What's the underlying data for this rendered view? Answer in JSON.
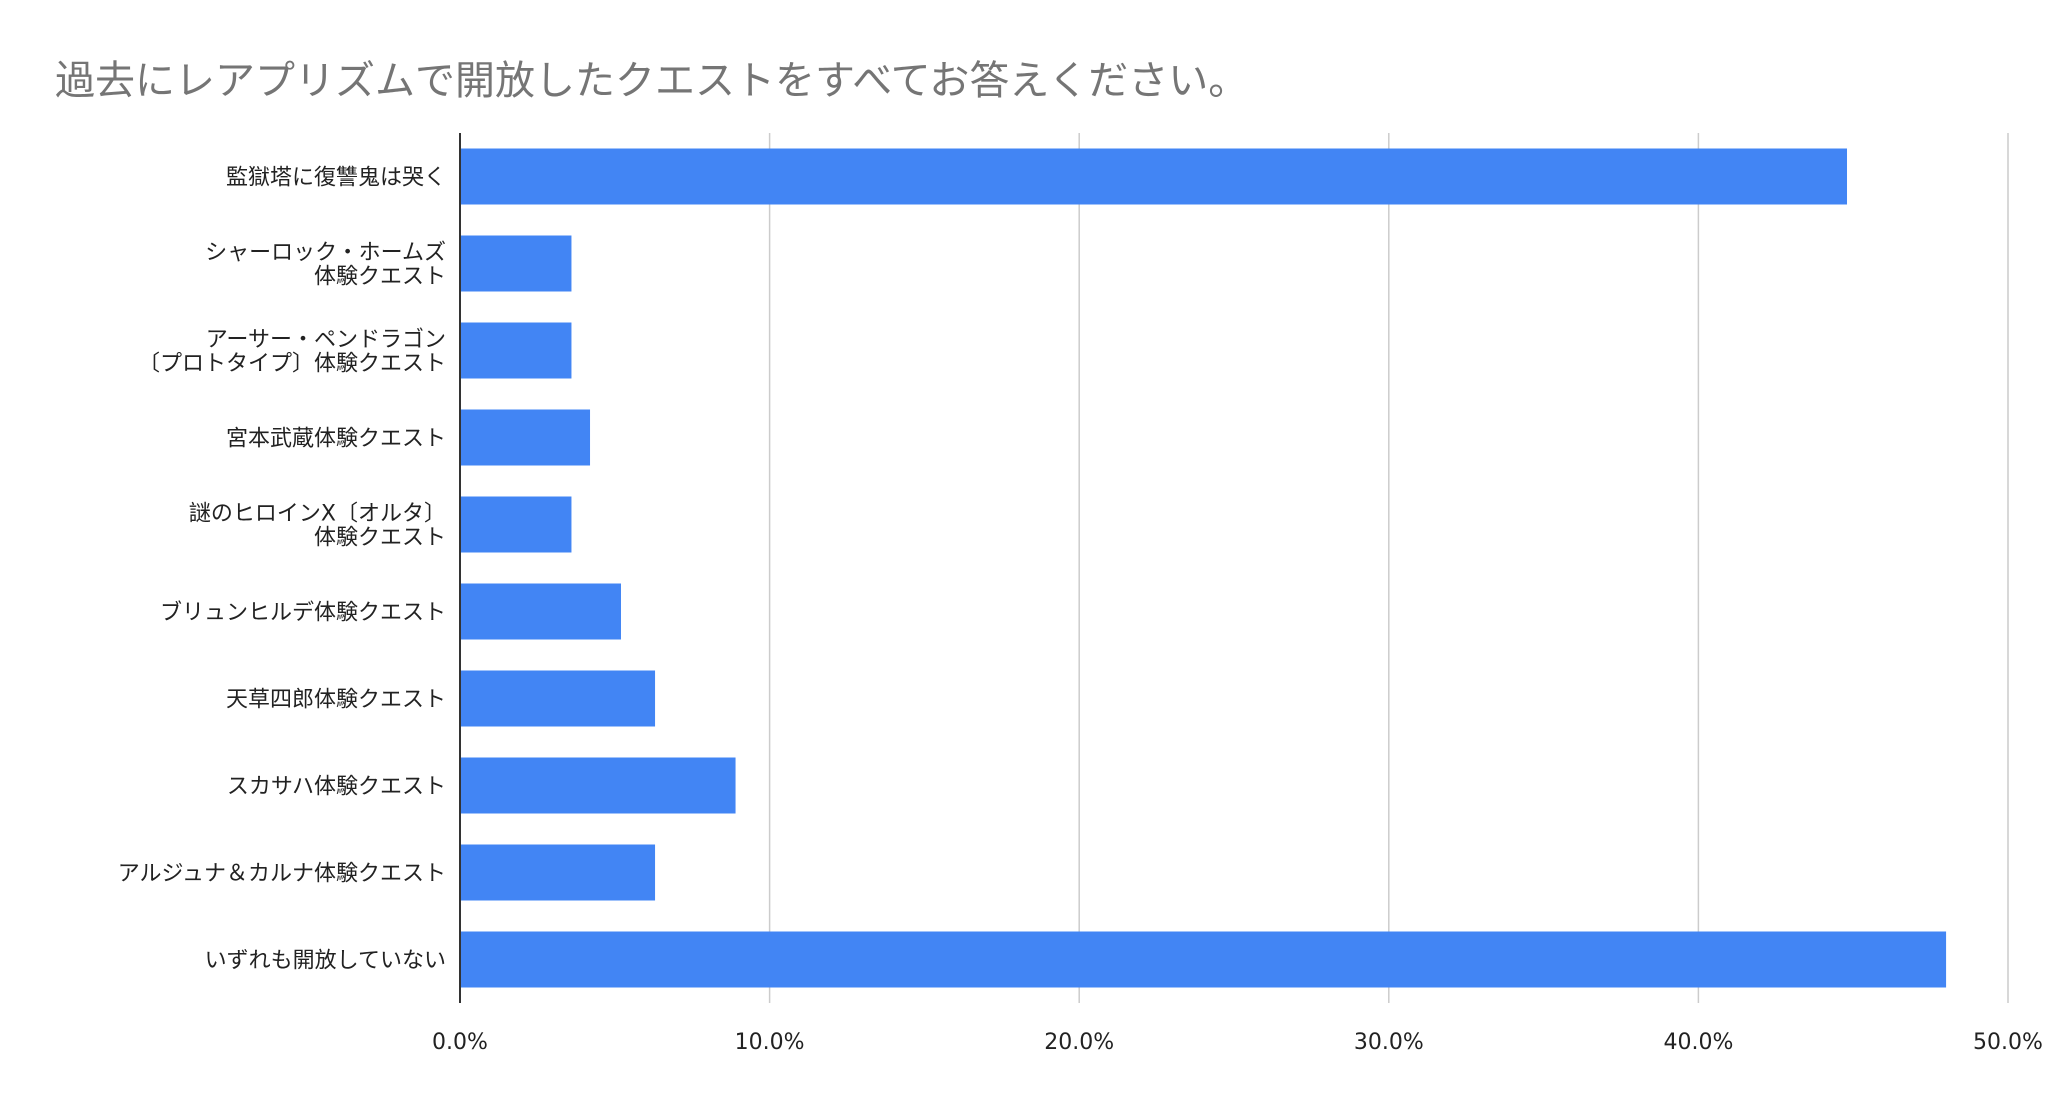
{
  "chart_data": {
    "type": "bar",
    "orientation": "horizontal",
    "title": "過去にレアプリズムで開放したクエストをすべてお答えください。",
    "xlabel": "",
    "ylabel": "",
    "categories": [
      [
        "監獄塔に復讐鬼は哭く"
      ],
      [
        "シャーロック・ホームズ",
        "体験クエスト"
      ],
      [
        "アーサー・ペンドラゴン",
        "〔プロトタイプ〕体験クエスト"
      ],
      [
        "宮本武蔵体験クエスト"
      ],
      [
        "謎のヒロインX〔オルタ〕",
        "体験クエスト"
      ],
      [
        "ブリュンヒルデ体験クエスト"
      ],
      [
        "天草四郎体験クエスト"
      ],
      [
        "スカサハ体験クエスト"
      ],
      [
        "アルジュナ＆カルナ体験クエスト"
      ],
      [
        "いずれも開放していない"
      ]
    ],
    "values": [
      44.8,
      3.6,
      3.6,
      4.2,
      3.6,
      5.2,
      6.3,
      8.9,
      6.3,
      48.0
    ],
    "xlim": [
      0,
      50
    ],
    "xticks": [
      "0.0%",
      "10.0%",
      "20.0%",
      "30.0%",
      "40.0%",
      "50.0%"
    ],
    "grid": true,
    "legend": "none",
    "bar_color": "#4285F4",
    "grid_color": "#CCCCCC",
    "axis_color": "#333333",
    "label_color": "#222222",
    "title_color": "#757575"
  }
}
